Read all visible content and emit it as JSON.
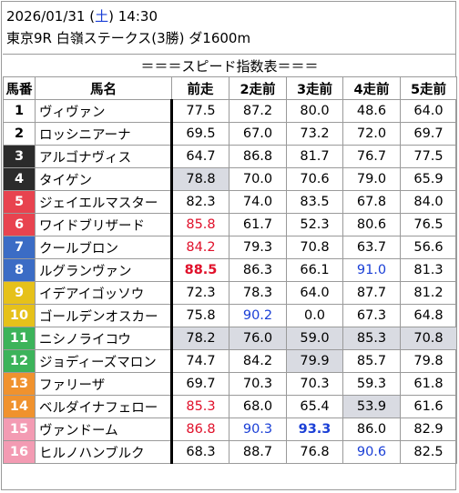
{
  "header": {
    "date": "2026/01/31",
    "dow_open": "(",
    "dow": "土",
    "dow_close": ")",
    "time": "14:30",
    "race": "東京9R 白嶺ステークス(3勝) ダ1600m"
  },
  "banner": "＝＝＝スピード指数表＝＝＝",
  "columns": [
    "馬番",
    "馬名",
    "前走",
    "2走前",
    "3走前",
    "4走前",
    "5走前"
  ],
  "colors": {
    "red": "#e0102a",
    "blue": "#1a3fd6",
    "highlight": "#d9dbe2",
    "num_bg": [
      "#ffffff",
      "#ffffff",
      "#2b2b2b",
      "#2b2b2b",
      "#e8434f",
      "#e8434f",
      "#3b6cc5",
      "#3b6cc5",
      "#e6c11a",
      "#e6c11a",
      "#3cb35a",
      "#3cb35a",
      "#f0922e",
      "#f0922e",
      "#f39bb3",
      "#f39bb3"
    ],
    "num_fg": [
      "#000000",
      "#000000",
      "#ffffff",
      "#ffffff",
      "#ffffff",
      "#ffffff",
      "#ffffff",
      "#ffffff",
      "#ffffff",
      "#ffffff",
      "#ffffff",
      "#ffffff",
      "#ffffff",
      "#ffffff",
      "#ffffff",
      "#ffffff"
    ]
  },
  "rows": [
    {
      "num": "1",
      "name": "ヴィヴァン",
      "v": [
        "77.5",
        "87.2",
        "80.0",
        "48.6",
        "64.0"
      ]
    },
    {
      "num": "2",
      "name": "ロッシニアーナ",
      "v": [
        "69.5",
        "67.0",
        "73.2",
        "72.0",
        "69.7"
      ]
    },
    {
      "num": "3",
      "name": "アルゴナヴィス",
      "v": [
        "64.7",
        "86.8",
        "81.7",
        "76.7",
        "77.5"
      ]
    },
    {
      "num": "4",
      "name": "タイゲン",
      "v": [
        "78.8",
        "70.0",
        "70.6",
        "79.0",
        "65.9"
      ]
    },
    {
      "num": "5",
      "name": "ジェイエルマスター",
      "v": [
        "82.3",
        "74.0",
        "83.5",
        "67.8",
        "84.0"
      ]
    },
    {
      "num": "6",
      "name": "ワイドブリザード",
      "v": [
        "85.8",
        "61.7",
        "52.3",
        "80.6",
        "76.5"
      ]
    },
    {
      "num": "7",
      "name": "クールブロン",
      "v": [
        "84.2",
        "79.3",
        "70.8",
        "63.7",
        "56.6"
      ]
    },
    {
      "num": "8",
      "name": "ルグランヴァン",
      "v": [
        "88.5",
        "86.3",
        "66.1",
        "91.0",
        "81.3"
      ]
    },
    {
      "num": "9",
      "name": "イデアイゴッソウ",
      "v": [
        "72.3",
        "78.3",
        "64.0",
        "87.7",
        "81.2"
      ]
    },
    {
      "num": "10",
      "name": "ゴールデンオスカー",
      "v": [
        "75.8",
        "90.2",
        "0.0",
        "67.3",
        "64.8"
      ]
    },
    {
      "num": "11",
      "name": "ニシノライコウ",
      "v": [
        "78.2",
        "76.0",
        "59.0",
        "85.3",
        "70.8"
      ]
    },
    {
      "num": "12",
      "name": "ジョディーズマロン",
      "v": [
        "74.7",
        "84.2",
        "79.9",
        "85.7",
        "79.8"
      ]
    },
    {
      "num": "13",
      "name": "ファリーザ",
      "v": [
        "69.7",
        "70.3",
        "70.3",
        "59.3",
        "61.8"
      ]
    },
    {
      "num": "14",
      "name": "ベルダイナフェロー",
      "v": [
        "85.3",
        "68.0",
        "65.4",
        "53.9",
        "61.6"
      ]
    },
    {
      "num": "15",
      "name": "ヴァンドーム",
      "v": [
        "86.8",
        "90.3",
        "93.3",
        "86.0",
        "82.9"
      ]
    },
    {
      "num": "16",
      "name": "ヒルノハンブルク",
      "v": [
        "68.3",
        "88.7",
        "76.8",
        "90.6",
        "82.5"
      ]
    }
  ],
  "styles": [
    [
      "",
      "",
      "",
      "",
      ""
    ],
    [
      "",
      "",
      "",
      "",
      ""
    ],
    [
      "",
      "",
      "",
      "",
      ""
    ],
    [
      "hl",
      "",
      "",
      "",
      ""
    ],
    [
      "",
      "",
      "",
      "",
      ""
    ],
    [
      "red",
      "",
      "",
      "",
      ""
    ],
    [
      "red",
      "",
      "",
      "",
      ""
    ],
    [
      "red bold",
      "",
      "",
      "blue",
      ""
    ],
    [
      "",
      "",
      "",
      "",
      ""
    ],
    [
      "",
      "blue",
      "",
      "",
      ""
    ],
    [
      "hl",
      "hl",
      "hl",
      "hl",
      "hl"
    ],
    [
      "",
      "",
      "hl",
      "",
      ""
    ],
    [
      "",
      "",
      "",
      "",
      ""
    ],
    [
      "red",
      "",
      "",
      "hl",
      ""
    ],
    [
      "red",
      "blue",
      "blue bold",
      "",
      ""
    ],
    [
      "",
      "",
      "",
      "blue",
      ""
    ]
  ]
}
